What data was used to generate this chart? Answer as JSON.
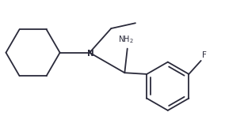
{
  "bg_color": "#ffffff",
  "line_color": "#2a2a3a",
  "text_color": "#2a2a3a",
  "figsize": [
    2.84,
    1.47
  ],
  "dpi": 100,
  "lw": 1.3
}
